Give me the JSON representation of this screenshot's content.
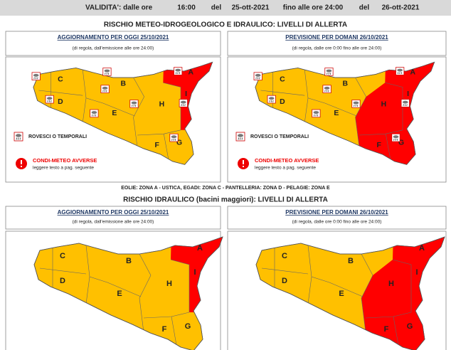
{
  "validity": {
    "label": "VALIDITA': dalle ore",
    "start_time": "16:00",
    "del_1": "del",
    "start_date": "25-ott-2021",
    "until": "fino alle ore 24:00",
    "del_2": "del",
    "end_date": "26-ott-2021"
  },
  "section_1": {
    "title": "RISCHIO METEO-IDROGEOLOGICO E IDRAULICO: LIVELLI DI ALLERTA",
    "today": {
      "heading": "AGGIORNAMENTO PER OGGI 25/10/2021",
      "note": "(di regola, dall'emissione alle ore 24:00)"
    },
    "tomorrow": {
      "heading": "PREVISIONE PER DOMANI 26/10/2021",
      "note": "(di regola, dalle ore 0:00 fino alle ore 24:00)"
    },
    "legend": {
      "showers": "ROVESCI O TEMPORALI",
      "adverse": "CONDI-METEO AVVERSE",
      "adverse_note": "leggere testo a pag. seguente"
    },
    "footnote": "EOLIE: ZONA A - USTICA, EGADI: ZONA C - PANTELLERIA: ZONA D - PELAGIE: ZONA E"
  },
  "section_2": {
    "title": "RISCHIO IDRAULICO (bacini maggiori): LIVELLI DI ALLERTA",
    "today": {
      "heading": "AGGIORNAMENTO PER OGGI 25/10/2021",
      "note": "(di regola, dall'emissione alle ore 24:00)"
    },
    "tomorrow": {
      "heading": "PREVISIONE PER DOMANI 26/10/2021",
      "note": "(di regola, dalle ore 0:00 fino alle ore 24:00)"
    }
  },
  "zones": [
    "A",
    "B",
    "C",
    "D",
    "E",
    "F",
    "G",
    "H",
    "I"
  ]
}
